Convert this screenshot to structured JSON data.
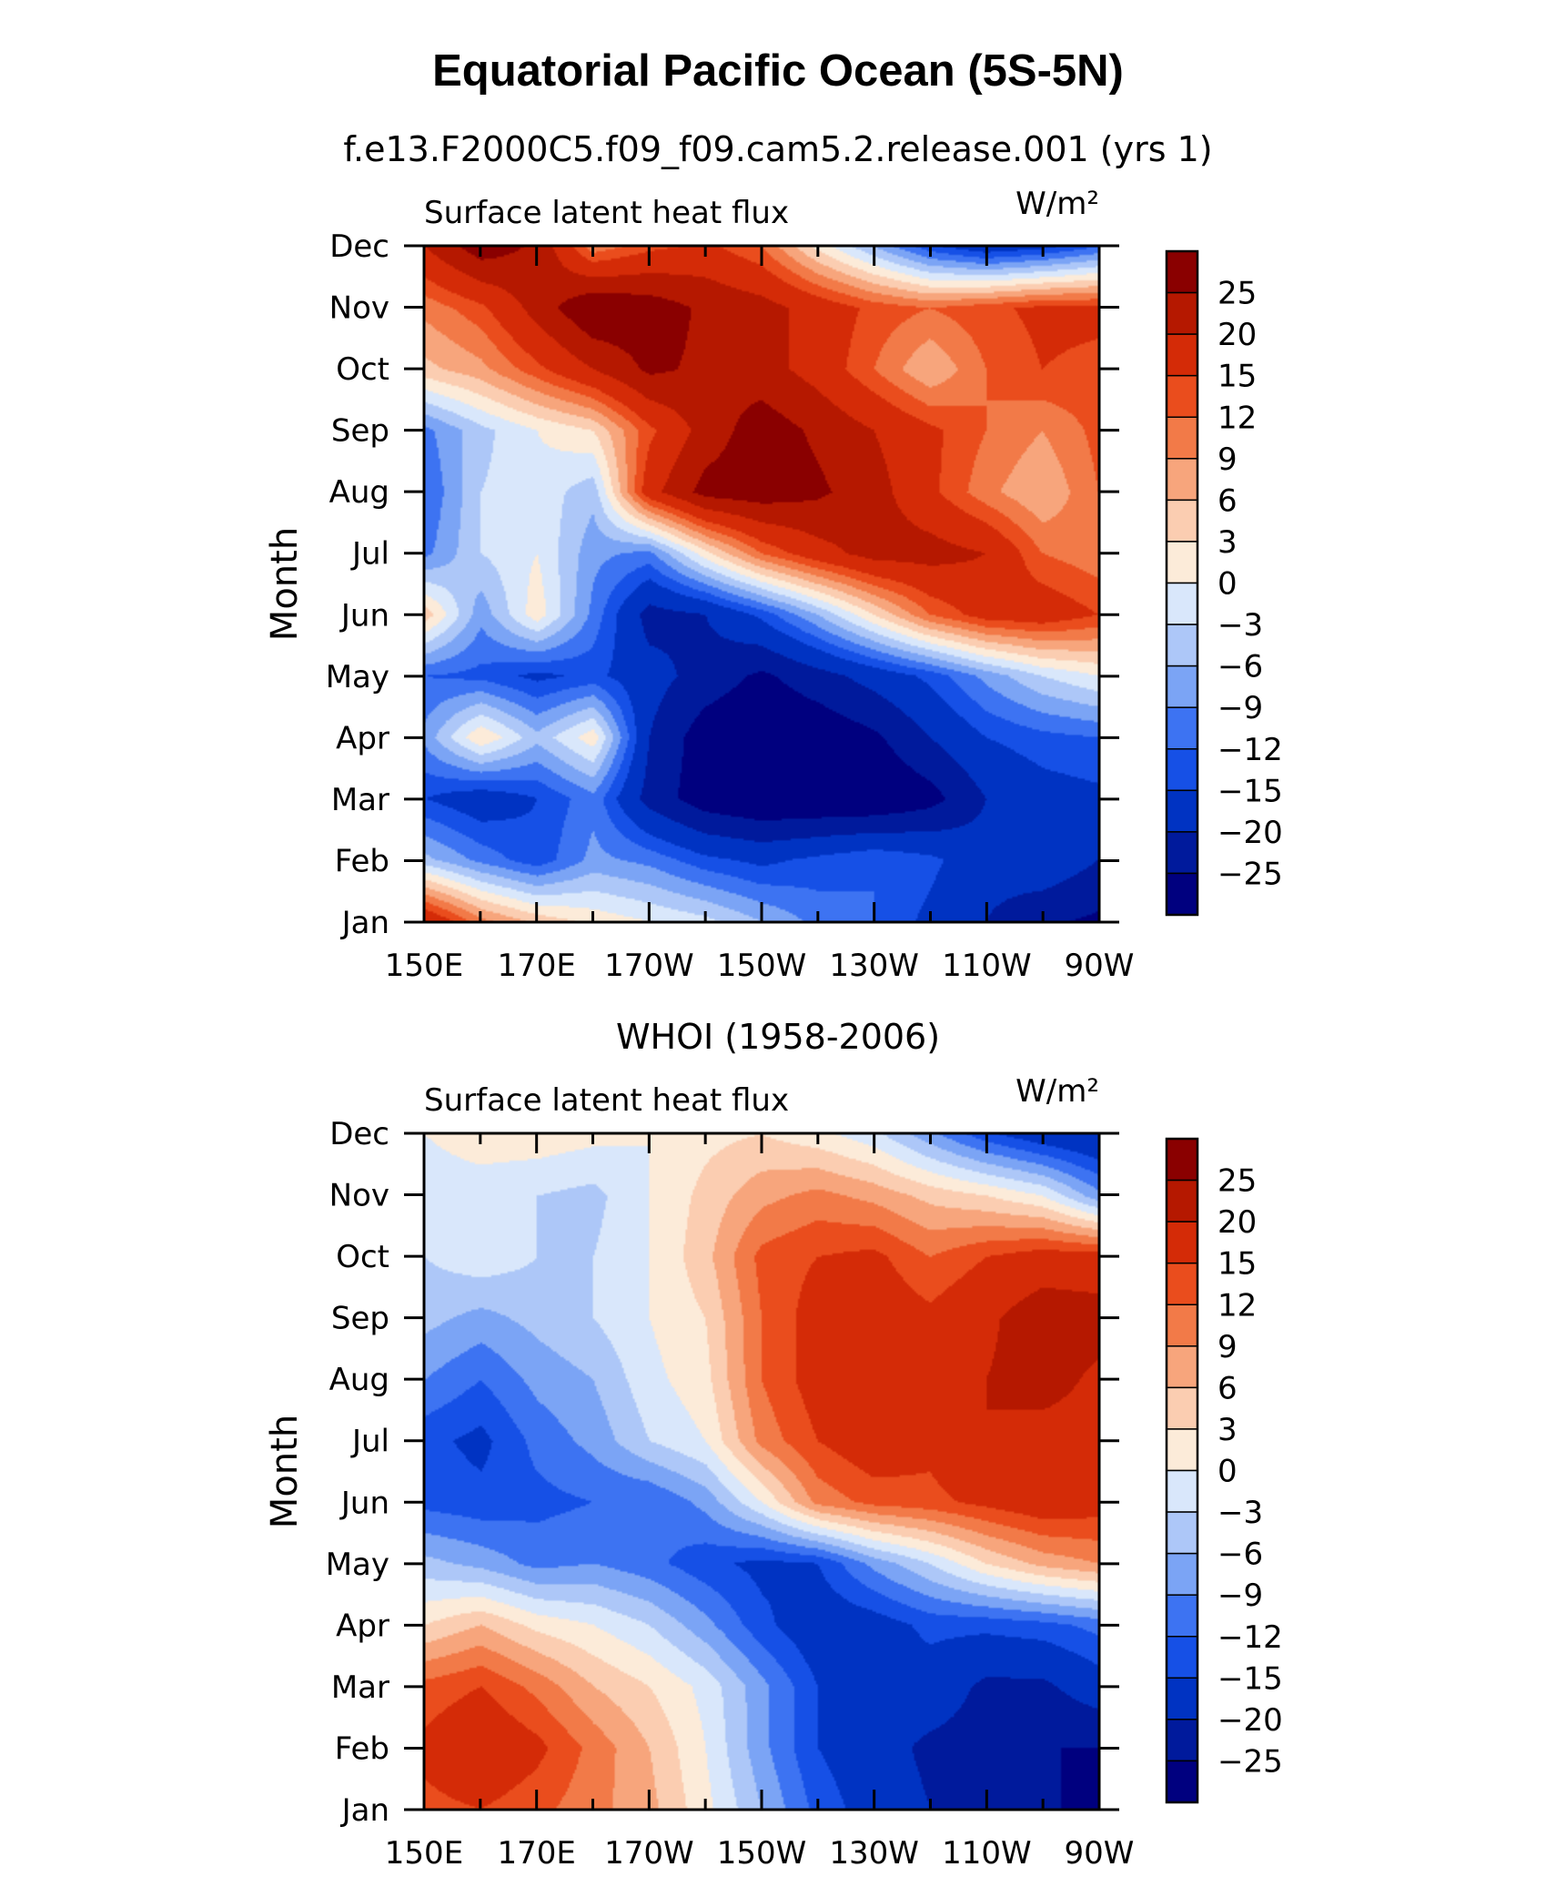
{
  "figure": {
    "title": "Equatorial Pacific Ocean (5S-5N)"
  },
  "colors": {
    "levels": [
      -25,
      -20,
      -15,
      -12,
      -9,
      -6,
      -3,
      0,
      3,
      6,
      9,
      12,
      15,
      20,
      25
    ],
    "bins": [
      "#00007f",
      "#001a9c",
      "#0033c2",
      "#1650e6",
      "#3d73f2",
      "#7ba4f5",
      "#adc7f8",
      "#d9e7fb",
      "#fcebd9",
      "#fbcdb1",
      "#f7a57c",
      "#f27a48",
      "#ea4d1d",
      "#d42b07",
      "#b51800",
      "#8a0000"
    ]
  },
  "chart_data": [
    {
      "type": "heatmap",
      "title": "f.e13.F2000C5.f09_f09.cam5.2.release.001 (yrs 1)",
      "subtitle": "Surface latent heat flux",
      "units": "W/m²",
      "ylabel": "Month",
      "xticks": [
        "150E",
        "170E",
        "170W",
        "150W",
        "130W",
        "110W",
        "90W"
      ],
      "yticks": [
        "Jan",
        "Feb",
        "Mar",
        "Apr",
        "May",
        "Jun",
        "Jul",
        "Aug",
        "Sep",
        "Oct",
        "Nov",
        "Dec"
      ],
      "colorbar_labels": [
        "25",
        "20",
        "15",
        "12",
        "9",
        "6",
        "3",
        "0",
        "−3",
        "−6",
        "−9",
        "−12",
        "−15",
        "−20",
        "−25"
      ],
      "xlim": [
        150,
        270
      ],
      "ylim": [
        1,
        12
      ],
      "lon": [
        150,
        160,
        170,
        180,
        190,
        200,
        210,
        220,
        230,
        240,
        250,
        260,
        270
      ],
      "values": [
        [
          20,
          10,
          5,
          2,
          0,
          -2,
          -6,
          -10,
          -12,
          -16,
          -20,
          -24,
          -26
        ],
        [
          -5,
          -10,
          -14,
          -8,
          -10,
          -14,
          -16,
          -14,
          -12,
          -14,
          -18,
          -16,
          -20
        ],
        [
          -15,
          -18,
          -15,
          -10,
          -22,
          -28,
          -30,
          -30,
          -30,
          -27,
          -20,
          -17,
          -16
        ],
        [
          -8,
          3,
          -5,
          2,
          -20,
          -28,
          -30,
          -29,
          -26,
          -20,
          -15,
          -13,
          -12
        ],
        [
          -12,
          -13,
          -16,
          -14,
          -18,
          -22,
          -26,
          -22,
          -18,
          -14,
          -8,
          -3,
          0
        ],
        [
          5,
          -8,
          2,
          -10,
          -22,
          -20,
          -14,
          -6,
          3,
          12,
          17,
          18,
          15
        ],
        [
          -10,
          -3,
          0,
          -8,
          -10,
          2,
          12,
          18,
          22,
          22,
          20,
          12,
          10
        ],
        [
          -12,
          -3,
          -1,
          -5,
          18,
          27,
          28,
          26,
          22,
          16,
          10,
          6,
          12
        ],
        [
          -10,
          -4,
          0,
          3,
          14,
          22,
          28,
          24,
          20,
          16,
          12,
          9,
          13
        ],
        [
          5,
          8,
          14,
          20,
          26,
          24,
          22,
          18,
          12,
          6,
          12,
          15,
          14
        ],
        [
          10,
          14,
          22,
          30,
          28,
          24,
          22,
          18,
          14,
          12,
          14,
          16,
          16
        ],
        [
          20,
          28,
          24,
          10,
          14,
          16,
          12,
          2,
          -6,
          -14,
          -18,
          -16,
          -12
        ]
      ]
    },
    {
      "type": "heatmap",
      "title": "WHOI (1958-2006)",
      "subtitle": "Surface latent heat flux",
      "units": "W/m²",
      "ylabel": "Month",
      "xticks": [
        "150E",
        "170E",
        "170W",
        "150W",
        "130W",
        "110W",
        "90W"
      ],
      "yticks": [
        "Jan",
        "Feb",
        "Mar",
        "Apr",
        "May",
        "Jun",
        "Jul",
        "Aug",
        "Sep",
        "Oct",
        "Nov",
        "Dec"
      ],
      "colorbar_labels": [
        "25",
        "20",
        "15",
        "12",
        "9",
        "6",
        "3",
        "0",
        "−3",
        "−6",
        "−9",
        "−12",
        "−15",
        "−20",
        "−25"
      ],
      "xlim": [
        150,
        270
      ],
      "ylim": [
        1,
        12
      ],
      "lon": [
        150,
        160,
        170,
        180,
        190,
        200,
        210,
        220,
        230,
        240,
        250,
        260,
        270
      ],
      "values": [
        [
          14,
          15,
          13,
          10,
          7,
          1,
          -6,
          -13,
          -17,
          -20,
          -21,
          -24,
          -27
        ],
        [
          16,
          19,
          16,
          11,
          6,
          0,
          -8,
          -15,
          -18,
          -21,
          -22,
          -25,
          -25
        ],
        [
          13,
          15,
          11,
          6,
          3,
          -1,
          -8,
          -15,
          -18,
          -17,
          -21,
          -21,
          -17
        ],
        [
          3,
          6,
          2,
          0,
          -3,
          -8,
          -14,
          -18,
          -17,
          -14,
          -14,
          -13,
          -11
        ],
        [
          -5,
          -7,
          -10,
          -9,
          -11,
          -14,
          -16,
          -15,
          -8,
          -3,
          3,
          7,
          9
        ],
        [
          -13,
          -14,
          -13,
          -12,
          -12,
          -8,
          0,
          10,
          13,
          14,
          16,
          18,
          17
        ],
        [
          -14,
          -16,
          -11,
          -8,
          -3,
          0,
          10,
          15,
          18,
          16,
          20,
          18,
          18
        ],
        [
          -9,
          -12,
          -8,
          -6,
          -1,
          2,
          12,
          17,
          20,
          16,
          20,
          22,
          19
        ],
        [
          -5,
          -7,
          -5,
          -3,
          0,
          3,
          12,
          17,
          18,
          16,
          19,
          23,
          22
        ],
        [
          -3,
          -1,
          -3,
          -3,
          0,
          5,
          13,
          15,
          16,
          12,
          15,
          17,
          17
        ],
        [
          -2,
          -2,
          -3,
          -4,
          0,
          4,
          8,
          10,
          8,
          5,
          3,
          0,
          -8
        ],
        [
          0,
          2,
          2,
          1,
          0,
          2,
          3,
          1,
          -2,
          -8,
          -14,
          -18,
          -20
        ]
      ]
    }
  ]
}
